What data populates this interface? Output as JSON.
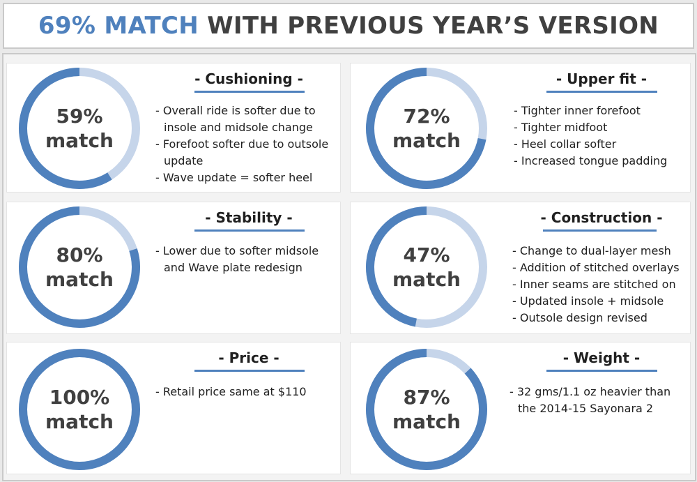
{
  "header": {
    "highlight": "69% MATCH",
    "rest": " WITH PREVIOUS YEAR’S VERSION"
  },
  "colors": {
    "primary": "#4f81bd",
    "secondary": "#c6d5ea",
    "text": "#404040"
  },
  "chart_data": [
    {
      "type": "pie",
      "title": "- Cushioning -",
      "values": [
        59,
        41
      ],
      "center_label": [
        "59%",
        "match"
      ],
      "notes": [
        "- Overall ride is softer due to insole and midsole change",
        "- Forefoot softer due to outsole update",
        "- Wave update = softer heel"
      ]
    },
    {
      "type": "pie",
      "title": "- Upper fit -",
      "values": [
        72,
        28
      ],
      "center_label": [
        "72%",
        "match"
      ],
      "notes": [
        "- Tighter inner forefoot",
        "- Tighter midfoot",
        "- Heel collar softer",
        "- Increased tongue padding"
      ]
    },
    {
      "type": "pie",
      "title": "- Stability -",
      "values": [
        80,
        20
      ],
      "center_label": [
        "80%",
        "match"
      ],
      "notes": [
        "- Lower due to softer midsole and Wave plate redesign"
      ]
    },
    {
      "type": "pie",
      "title": "- Construction -",
      "values": [
        47,
        53
      ],
      "center_label": [
        "47%",
        "match"
      ],
      "notes": [
        "- Change to dual-layer mesh",
        "- Addition of stitched overlays",
        "- Inner seams are stitched on",
        "- Updated insole + midsole",
        "- Outsole design revised"
      ]
    },
    {
      "type": "pie",
      "title": "- Price -",
      "values": [
        100,
        0
      ],
      "center_label": [
        "100%",
        "match"
      ],
      "notes": [
        "-  Retail price same at $110"
      ]
    },
    {
      "type": "pie",
      "title": "- Weight -",
      "values": [
        87,
        13
      ],
      "center_label": [
        "87%",
        "match"
      ],
      "notes": [
        "- 32 gms/1.1 oz heavier than the 2014-15 Sayonara 2"
      ]
    }
  ]
}
